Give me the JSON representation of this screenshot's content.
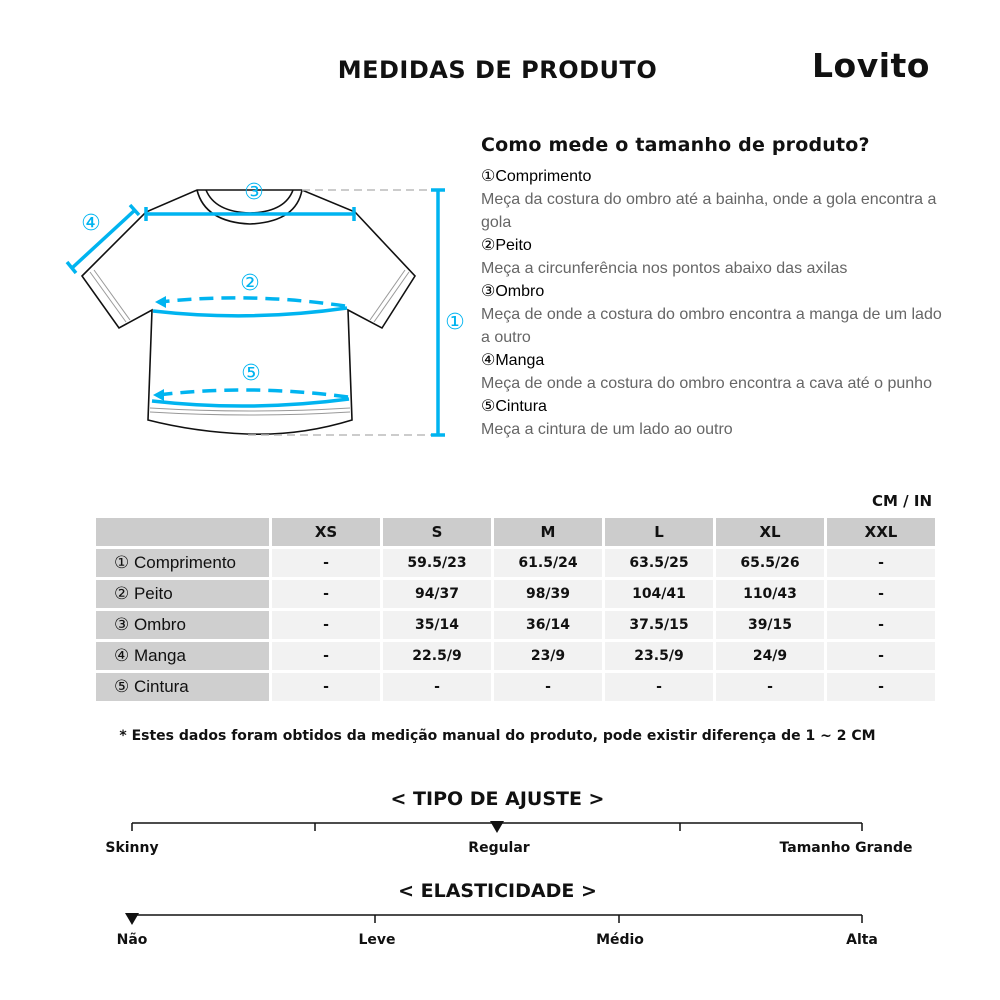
{
  "header": {
    "title": "MEDIDAS DE PRODUTO",
    "brand": "Lovito"
  },
  "diagram": {
    "accent_color": "#00b4f0",
    "markers": [
      "①",
      "②",
      "③",
      "④",
      "⑤"
    ]
  },
  "guide": {
    "heading": "Como mede o tamanho de produto?",
    "items": [
      {
        "name": "①Comprimento",
        "desc": "Meça da costura do ombro até a bainha, onde a gola encontra a gola"
      },
      {
        "name": "②Peito",
        "desc": "Meça a circunferência nos pontos abaixo das axilas"
      },
      {
        "name": "③Ombro",
        "desc": "Meça de onde a costura do ombro encontra a manga de um lado a outro"
      },
      {
        "name": "④Manga",
        "desc": "Meça de onde a costura do ombro encontra a cava até o punho"
      },
      {
        "name": "⑤Cintura",
        "desc": "Meça a cintura de um lado ao outro"
      }
    ]
  },
  "table": {
    "unit": "CM / IN",
    "columns": [
      "XS",
      "S",
      "M",
      "L",
      "XL",
      "XXL"
    ],
    "rows": [
      {
        "label": "① Comprimento",
        "values": [
          "-",
          "59.5/23",
          "61.5/24",
          "63.5/25",
          "65.5/26",
          "-"
        ]
      },
      {
        "label": "② Peito",
        "values": [
          "-",
          "94/37",
          "98/39",
          "104/41",
          "110/43",
          "-"
        ]
      },
      {
        "label": "③ Ombro",
        "values": [
          "-",
          "35/14",
          "36/14",
          "37.5/15",
          "39/15",
          "-"
        ]
      },
      {
        "label": "④ Manga",
        "values": [
          "-",
          "22.5/9",
          "23/9",
          "23.5/9",
          "24/9",
          "-"
        ]
      },
      {
        "label": "⑤ Cintura",
        "values": [
          "-",
          "-",
          "-",
          "-",
          "-",
          "-"
        ]
      }
    ],
    "note": "* Estes dados foram obtidos da medição manual do produto, pode existir diferença de 1 ~ 2 CM"
  },
  "fit": {
    "title": "< TIPO DE AJUSTE >",
    "labels": [
      "Skinny",
      "Regular",
      "Tamanho Grande"
    ],
    "selected": "Regular"
  },
  "elasticity": {
    "title": "< ELASTICIDADE >",
    "labels": [
      "Não",
      "Leve",
      "Médio",
      "Alta"
    ],
    "selected": "Não"
  }
}
